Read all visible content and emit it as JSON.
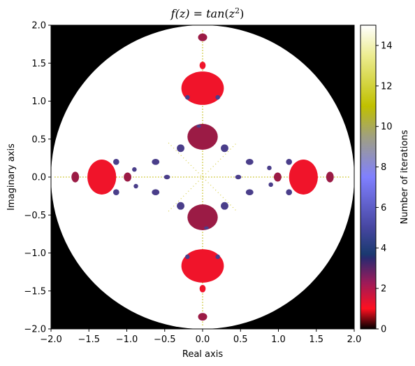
{
  "chart_data": {
    "type": "heatmap",
    "title": "f(z) = tan(z²)",
    "title_parts": {
      "lhs": "f(z)",
      "eq": " = ",
      "fn": "tan",
      "open": "(",
      "var": "z",
      "sup": "2",
      "close": ")"
    },
    "xlabel": "Real axis",
    "ylabel": "Imaginary axis",
    "xlim": [
      -2.0,
      2.0
    ],
    "ylim": [
      -2.0,
      2.0
    ],
    "xticks": [
      -2.0,
      -1.5,
      -1.0,
      -0.5,
      0.0,
      0.5,
      1.0,
      1.5,
      2.0
    ],
    "yticks": [
      -2.0,
      -1.5,
      -1.0,
      -0.5,
      0.0,
      0.5,
      1.0,
      1.5,
      2.0
    ],
    "xtick_labels": [
      "−2.0",
      "−1.5",
      "−1.0",
      "−0.5",
      "0.0",
      "0.5",
      "1.0",
      "1.5",
      "2.0"
    ],
    "ytick_labels": [
      "−2.0",
      "−1.5",
      "−1.0",
      "−0.5",
      "0.0",
      "0.5",
      "1.0",
      "1.5",
      "2.0"
    ],
    "colorbar": {
      "label": "Number of iterations",
      "range": [
        0,
        15
      ],
      "ticks": [
        0,
        2,
        4,
        6,
        8,
        10,
        12,
        14
      ],
      "tick_labels": [
        "0",
        "2",
        "4",
        "6",
        "8",
        "10",
        "12",
        "14"
      ],
      "colormap_stops": [
        {
          "value": 0.0,
          "color": "#000000"
        },
        {
          "value": 1.0,
          "color": "#ff1020"
        },
        {
          "value": 2.3,
          "color": "#9b1b5a"
        },
        {
          "value": 3.5,
          "color": "#2a2a70"
        },
        {
          "value": 3.7,
          "color": "#1a3a70"
        },
        {
          "value": 5.0,
          "color": "#4646a0"
        },
        {
          "value": 7.5,
          "color": "#8080ff"
        },
        {
          "value": 9.5,
          "color": "#a0a080"
        },
        {
          "value": 11.0,
          "color": "#c0c000"
        },
        {
          "value": 13.5,
          "color": "#ecec90"
        },
        {
          "value": 15.0,
          "color": "#ffffff"
        }
      ]
    },
    "escape_radius": 2.0,
    "regions": [
      {
        "name": "outside-escape-radius",
        "iterations": 0,
        "color": "#000000"
      },
      {
        "name": "inside-disk",
        "iterations": 15,
        "color": "#ffffff"
      }
    ],
    "blobs": [
      {
        "cx": 0.0,
        "cy": 1.17,
        "rx": 0.28,
        "ry": 0.22,
        "iterations": 1,
        "color": "#f0142a"
      },
      {
        "cx": 0.0,
        "cy": -1.17,
        "rx": 0.28,
        "ry": 0.22,
        "iterations": 1,
        "color": "#f0142a"
      },
      {
        "cx": 1.33,
        "cy": 0.0,
        "rx": 0.19,
        "ry": 0.23,
        "iterations": 1,
        "color": "#f0142a"
      },
      {
        "cx": -1.33,
        "cy": 0.0,
        "rx": 0.19,
        "ry": 0.23,
        "iterations": 1,
        "color": "#f0142a"
      },
      {
        "cx": 0.0,
        "cy": 0.53,
        "rx": 0.2,
        "ry": 0.17,
        "iterations": 2,
        "color": "#9b1b45"
      },
      {
        "cx": 0.0,
        "cy": -0.53,
        "rx": 0.2,
        "ry": 0.17,
        "iterations": 2,
        "color": "#9b1b45"
      },
      {
        "cx": 0.0,
        "cy": 1.84,
        "rx": 0.06,
        "ry": 0.05,
        "iterations": 2,
        "color": "#9b1b45"
      },
      {
        "cx": 0.0,
        "cy": -1.84,
        "rx": 0.06,
        "ry": 0.05,
        "iterations": 2,
        "color": "#9b1b45"
      },
      {
        "cx": 1.68,
        "cy": 0.0,
        "rx": 0.05,
        "ry": 0.07,
        "iterations": 2,
        "color": "#9b1b45"
      },
      {
        "cx": -1.68,
        "cy": 0.0,
        "rx": 0.05,
        "ry": 0.07,
        "iterations": 2,
        "color": "#9b1b45"
      },
      {
        "cx": 0.0,
        "cy": 1.47,
        "rx": 0.04,
        "ry": 0.05,
        "iterations": 1,
        "color": "#f0142a"
      },
      {
        "cx": 0.0,
        "cy": -1.47,
        "rx": 0.04,
        "ry": 0.05,
        "iterations": 1,
        "color": "#f0142a"
      },
      {
        "cx": 0.99,
        "cy": 0.0,
        "rx": 0.05,
        "ry": 0.06,
        "iterations": 2,
        "color": "#9b1b45"
      },
      {
        "cx": -0.99,
        "cy": 0.0,
        "rx": 0.05,
        "ry": 0.06,
        "iterations": 2,
        "color": "#9b1b45"
      },
      {
        "cx": -0.29,
        "cy": 0.38,
        "rx": 0.05,
        "ry": 0.05,
        "iterations": 3,
        "color": "#4a3e8a"
      },
      {
        "cx": 0.29,
        "cy": 0.38,
        "rx": 0.05,
        "ry": 0.05,
        "iterations": 3,
        "color": "#4a3e8a"
      },
      {
        "cx": -0.29,
        "cy": -0.38,
        "rx": 0.05,
        "ry": 0.05,
        "iterations": 3,
        "color": "#4a3e8a"
      },
      {
        "cx": 0.29,
        "cy": -0.38,
        "rx": 0.05,
        "ry": 0.05,
        "iterations": 3,
        "color": "#4a3e8a"
      },
      {
        "cx": -0.62,
        "cy": 0.2,
        "rx": 0.05,
        "ry": 0.04,
        "iterations": 3,
        "color": "#4a3e8a"
      },
      {
        "cx": 0.62,
        "cy": 0.2,
        "rx": 0.05,
        "ry": 0.04,
        "iterations": 3,
        "color": "#4a3e8a"
      },
      {
        "cx": -0.62,
        "cy": -0.2,
        "rx": 0.05,
        "ry": 0.04,
        "iterations": 3,
        "color": "#4a3e8a"
      },
      {
        "cx": 0.62,
        "cy": -0.2,
        "rx": 0.05,
        "ry": 0.04,
        "iterations": 3,
        "color": "#4a3e8a"
      },
      {
        "cx": -1.14,
        "cy": 0.2,
        "rx": 0.04,
        "ry": 0.04,
        "iterations": 3,
        "color": "#4a3e8a"
      },
      {
        "cx": 1.14,
        "cy": 0.2,
        "rx": 0.04,
        "ry": 0.04,
        "iterations": 3,
        "color": "#4a3e8a"
      },
      {
        "cx": -1.14,
        "cy": -0.2,
        "rx": 0.04,
        "ry": 0.04,
        "iterations": 3,
        "color": "#4a3e8a"
      },
      {
        "cx": 1.14,
        "cy": -0.2,
        "rx": 0.04,
        "ry": 0.04,
        "iterations": 3,
        "color": "#4a3e8a"
      },
      {
        "cx": -0.2,
        "cy": 1.05,
        "rx": 0.03,
        "ry": 0.03,
        "iterations": 3,
        "color": "#4a3e8a"
      },
      {
        "cx": 0.2,
        "cy": 1.05,
        "rx": 0.03,
        "ry": 0.03,
        "iterations": 3,
        "color": "#4a3e8a"
      },
      {
        "cx": -0.2,
        "cy": -1.05,
        "rx": 0.03,
        "ry": 0.03,
        "iterations": 3,
        "color": "#4a3e8a"
      },
      {
        "cx": 0.2,
        "cy": -1.05,
        "rx": 0.03,
        "ry": 0.03,
        "iterations": 3,
        "color": "#4a3e8a"
      },
      {
        "cx": -0.47,
        "cy": 0.0,
        "rx": 0.04,
        "ry": 0.03,
        "iterations": 3,
        "color": "#4a3e8a"
      },
      {
        "cx": 0.47,
        "cy": 0.0,
        "rx": 0.04,
        "ry": 0.03,
        "iterations": 3,
        "color": "#4a3e8a"
      },
      {
        "cx": -0.05,
        "cy": 0.67,
        "rx": 0.03,
        "ry": 0.02,
        "iterations": 3,
        "color": "#4a3e8a"
      },
      {
        "cx": 0.05,
        "cy": -0.67,
        "rx": 0.03,
        "ry": 0.02,
        "iterations": 3,
        "color": "#4a3e8a"
      },
      {
        "cx": -0.9,
        "cy": 0.1,
        "rx": 0.03,
        "ry": 0.03,
        "iterations": 3,
        "color": "#4a3e8a"
      },
      {
        "cx": 0.9,
        "cy": -0.1,
        "rx": 0.03,
        "ry": 0.03,
        "iterations": 3,
        "color": "#4a3e8a"
      },
      {
        "cx": 0.88,
        "cy": 0.12,
        "rx": 0.03,
        "ry": 0.03,
        "iterations": 3,
        "color": "#4a3e8a"
      },
      {
        "cx": -0.88,
        "cy": -0.12,
        "rx": 0.03,
        "ry": 0.03,
        "iterations": 3,
        "color": "#4a3e8a"
      }
    ]
  }
}
